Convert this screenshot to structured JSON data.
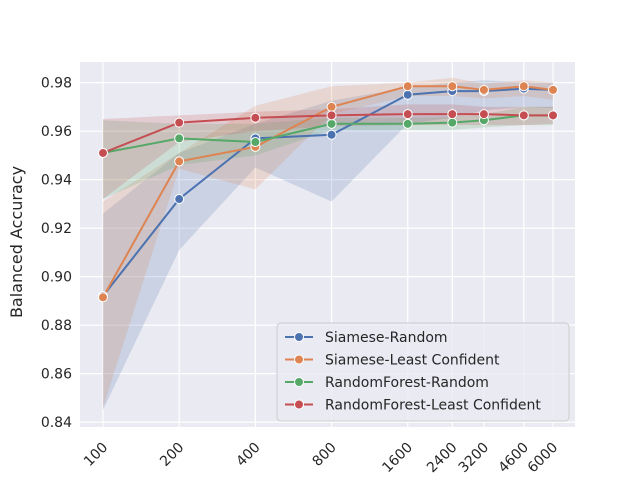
{
  "chart_data": {
    "type": "line",
    "title": "",
    "xlabel": "",
    "ylabel": "Balanced Accuracy",
    "x": [
      100,
      200,
      400,
      800,
      1600,
      2400,
      3200,
      4600,
      6000
    ],
    "x_tick_labels": [
      "100",
      "200",
      "400",
      "800",
      "1600",
      "2400",
      "3200",
      "4600",
      "6000"
    ],
    "x_scale": "log",
    "y_ticks": [
      "0.84",
      "0.86",
      "0.88",
      "0.90",
      "0.92",
      "0.94",
      "0.96",
      "0.98"
    ],
    "ylim": [
      0.838,
      0.9885
    ],
    "grid": true,
    "legend_position": "lower-right",
    "series": [
      {
        "name": "Siamese-Random",
        "color": "#4c72b0",
        "values": [
          0.892,
          0.932,
          0.957,
          0.9585,
          0.975,
          0.9765,
          0.9765,
          0.9775,
          0.977
        ],
        "lower": [
          0.845,
          0.911,
          0.945,
          0.931,
          0.963,
          0.9655,
          0.9685,
          0.97,
          0.9695
        ],
        "upper": [
          0.926,
          0.951,
          0.963,
          0.9725,
          0.978,
          0.98,
          0.981,
          0.98,
          0.98
        ]
      },
      {
        "name": "Siamese-Least Confident",
        "color": "#dd8452",
        "values": [
          0.8915,
          0.9475,
          0.9535,
          0.97,
          0.9785,
          0.9785,
          0.977,
          0.9785,
          0.977
        ],
        "lower": [
          0.846,
          0.9445,
          0.936,
          0.967,
          0.9745,
          0.9745,
          0.9735,
          0.9745,
          0.973
        ],
        "upper": [
          0.931,
          0.951,
          0.9705,
          0.9785,
          0.98,
          0.982,
          0.9795,
          0.981,
          0.98
        ]
      },
      {
        "name": "RandomForest-Random",
        "color": "#55a868",
        "values": [
          0.951,
          0.957,
          0.9555,
          0.963,
          0.963,
          0.9635,
          0.9645,
          0.9665,
          0.9665
        ],
        "lower": [
          0.932,
          0.946,
          0.95,
          0.9605,
          0.9605,
          0.9605,
          0.9615,
          0.9625,
          0.9625
        ],
        "upper": [
          0.9645,
          0.963,
          0.963,
          0.9655,
          0.9655,
          0.966,
          0.967,
          0.97,
          0.97
        ]
      },
      {
        "name": "RandomForest-Least Confident",
        "color": "#c44e52",
        "values": [
          0.951,
          0.9635,
          0.9655,
          0.9665,
          0.967,
          0.967,
          0.967,
          0.9665,
          0.9665
        ],
        "lower": [
          0.932,
          0.9555,
          0.96,
          0.962,
          0.9625,
          0.9625,
          0.9625,
          0.9625,
          0.963
        ],
        "upper": [
          0.965,
          0.9665,
          0.968,
          0.969,
          0.971,
          0.971,
          0.97,
          0.97,
          0.97
        ]
      }
    ]
  }
}
